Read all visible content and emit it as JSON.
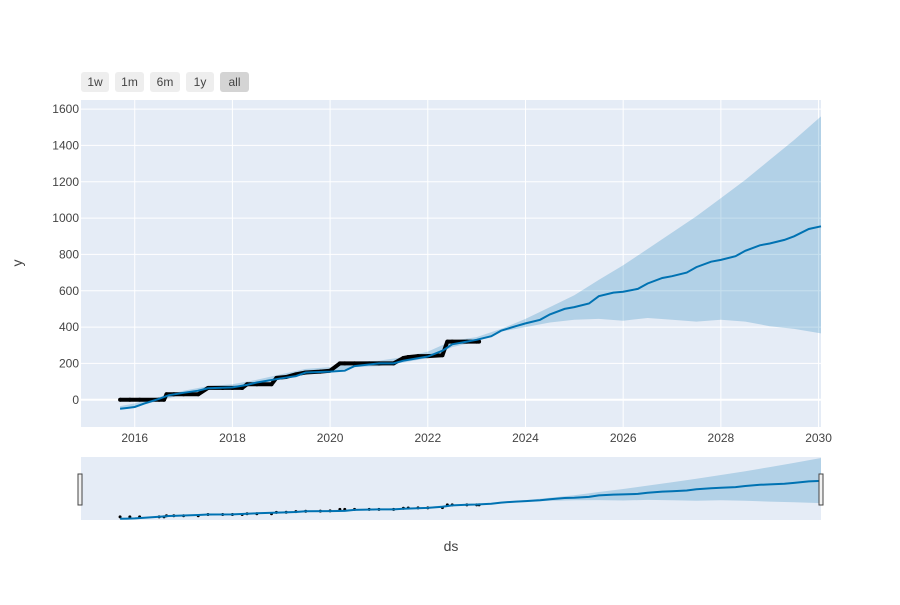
{
  "chart_data": {
    "type": "line",
    "title": "",
    "xlabel": "ds",
    "ylabel": "y",
    "xlim": [
      2014.9,
      2030.05
    ],
    "ylim": [
      -150,
      1650
    ],
    "x_ticks": [
      "2016",
      "2018",
      "2020",
      "2022",
      "2024",
      "2026",
      "2028",
      "2030"
    ],
    "y_ticks": [
      "0",
      "200",
      "400",
      "600",
      "800",
      "1000",
      "1200",
      "1400",
      "1600"
    ],
    "grid": true,
    "range_selector": {
      "buttons": [
        "1w",
        "1m",
        "6m",
        "1y",
        "all"
      ],
      "active": "all"
    },
    "range_slider": true,
    "series": [
      {
        "kind": "uncertainty_band",
        "color": "#0072B2",
        "x": [
          2015.7,
          2016.0,
          2016.5,
          2017.0,
          2017.5,
          2018.0,
          2018.5,
          2019.0,
          2019.5,
          2020.0,
          2020.5,
          2021.0,
          2021.5,
          2022.0,
          2022.5,
          2023.0,
          2023.5,
          2024.0,
          2024.5,
          2025.0,
          2025.5,
          2026.0,
          2026.5,
          2027.0,
          2027.5,
          2028.0,
          2028.5,
          2029.0,
          2029.5,
          2030.05
        ],
        "upper": [
          -35,
          -20,
          15,
          50,
          75,
          85,
          110,
          140,
          170,
          180,
          210,
          215,
          235,
          265,
          325,
          345,
          390,
          445,
          510,
          575,
          660,
          740,
          830,
          920,
          1010,
          1110,
          1210,
          1320,
          1430,
          1560
        ],
        "lower": [
          -55,
          -40,
          -5,
          30,
          55,
          60,
          85,
          115,
          140,
          150,
          180,
          185,
          205,
          230,
          290,
          320,
          375,
          400,
          425,
          440,
          445,
          435,
          450,
          440,
          430,
          440,
          430,
          405,
          390,
          365
        ]
      },
      {
        "name": "",
        "kind": "forecast",
        "color": "#0072B2",
        "x": [
          2015.7,
          2016.0,
          2016.2,
          2016.5,
          2016.7,
          2017.0,
          2017.3,
          2017.5,
          2018.0,
          2018.3,
          2018.5,
          2019.0,
          2019.3,
          2019.5,
          2020.0,
          2020.3,
          2020.5,
          2021.0,
          2021.3,
          2021.5,
          2022.0,
          2022.3,
          2022.5,
          2022.8,
          2023.0,
          2023.3,
          2023.5,
          2023.8,
          2024.0,
          2024.3,
          2024.5,
          2024.8,
          2025.0,
          2025.3,
          2025.5,
          2025.8,
          2026.0,
          2026.3,
          2026.5,
          2026.8,
          2027.0,
          2027.3,
          2027.5,
          2027.8,
          2028.0,
          2028.3,
          2028.5,
          2028.8,
          2029.0,
          2029.3,
          2029.5,
          2029.8,
          2030.05
        ],
        "y": [
          -50,
          -40,
          -20,
          5,
          25,
          38,
          50,
          63,
          68,
          82,
          95,
          118,
          130,
          150,
          155,
          160,
          185,
          200,
          200,
          215,
          238,
          270,
          305,
          320,
          330,
          350,
          380,
          405,
          420,
          440,
          470,
          500,
          510,
          530,
          570,
          590,
          595,
          610,
          640,
          670,
          680,
          700,
          730,
          760,
          770,
          790,
          820,
          850,
          860,
          880,
          900,
          940,
          955
        ]
      },
      {
        "name": "",
        "kind": "observed",
        "color": "#000000",
        "x": [
          2015.7,
          2015.9,
          2016.1,
          2016.5,
          2016.6,
          2016.65,
          2016.8,
          2017.0,
          2017.3,
          2017.5,
          2017.8,
          2018.0,
          2018.2,
          2018.3,
          2018.5,
          2018.8,
          2018.9,
          2019.1,
          2019.3,
          2019.5,
          2019.8,
          2020.0,
          2020.2,
          2020.3,
          2020.5,
          2020.8,
          2021.0,
          2021.3,
          2021.5,
          2021.6,
          2021.8,
          2022.0,
          2022.3,
          2022.4,
          2022.5,
          2022.8,
          2023.0,
          2023.05
        ],
        "y": [
          0,
          0,
          0,
          0,
          0,
          30,
          30,
          30,
          30,
          65,
          65,
          65,
          65,
          85,
          85,
          85,
          120,
          125,
          140,
          150,
          155,
          160,
          200,
          200,
          200,
          200,
          200,
          200,
          230,
          235,
          240,
          240,
          245,
          320,
          320,
          320,
          320,
          320
        ]
      }
    ]
  }
}
